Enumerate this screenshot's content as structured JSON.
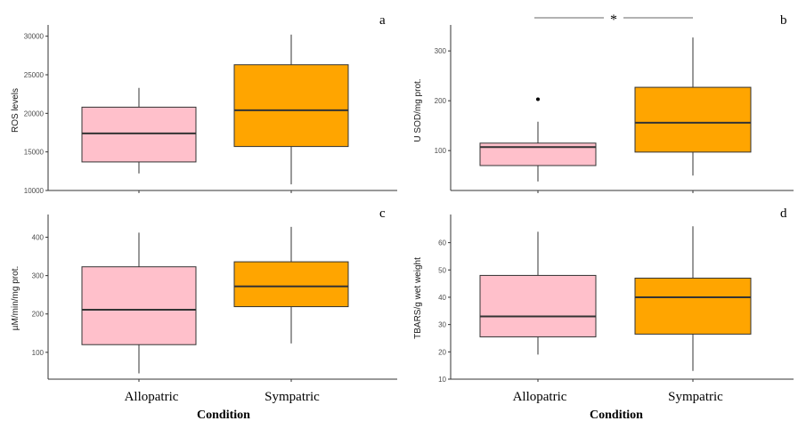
{
  "colors": {
    "allopatric": "#ffc0cb",
    "sympatric": "#ffa500",
    "box_stroke": "#333333",
    "axis": "#333333"
  },
  "xlabel": "Condition",
  "categories": [
    "Allopatric",
    "Sympatric"
  ],
  "chart_data": [
    {
      "type": "box",
      "panel": "a",
      "ylabel": "ROS levels",
      "yticks": [
        10000,
        15000,
        20000,
        25000,
        30000
      ],
      "ylim": [
        10000,
        31000
      ],
      "categories": [
        "Allopatric",
        "Sympatric"
      ],
      "boxes": [
        {
          "name": "Allopatric",
          "whisker_low": 12200,
          "q1": 13700,
          "median": 17400,
          "q3": 20800,
          "whisker_high": 23300,
          "outliers": []
        },
        {
          "name": "Sympatric",
          "whisker_low": 10800,
          "q1": 15700,
          "median": 20400,
          "q3": 26300,
          "whisker_high": 30200,
          "outliers": []
        }
      ]
    },
    {
      "type": "box",
      "panel": "b",
      "ylabel": "U SOD/mg prot.",
      "yticks": [
        100,
        200,
        300
      ],
      "ylim": [
        20,
        345
      ],
      "categories": [
        "Allopatric",
        "Sympatric"
      ],
      "boxes": [
        {
          "name": "Allopatric",
          "whisker_low": 38,
          "q1": 70,
          "median": 107,
          "q3": 115,
          "whisker_high": 158,
          "outliers": [
            203
          ]
        },
        {
          "name": "Sympatric",
          "whisker_low": 50,
          "q1": 97,
          "median": 156,
          "q3": 227,
          "whisker_high": 327,
          "outliers": []
        }
      ],
      "significance": "*"
    },
    {
      "type": "box",
      "panel": "c",
      "ylabel": "µM/min/mg prot.",
      "yticks": [
        100,
        200,
        300,
        400
      ],
      "ylim": [
        30,
        450
      ],
      "categories": [
        "Allopatric",
        "Sympatric"
      ],
      "boxes": [
        {
          "name": "Allopatric",
          "whisker_low": 45,
          "q1": 120,
          "median": 211,
          "q3": 323,
          "whisker_high": 412,
          "outliers": []
        },
        {
          "name": "Sympatric",
          "whisker_low": 123,
          "q1": 219,
          "median": 272,
          "q3": 336,
          "whisker_high": 427,
          "outliers": []
        }
      ]
    },
    {
      "type": "box",
      "panel": "d",
      "ylabel": "TBARS/g wet weight",
      "yticks": [
        10,
        20,
        30,
        40,
        50,
        60
      ],
      "ylim": [
        10,
        69
      ],
      "categories": [
        "Allopatric",
        "Sympatric"
      ],
      "boxes": [
        {
          "name": "Allopatric",
          "whisker_low": 19,
          "q1": 25.5,
          "median": 33,
          "q3": 48,
          "whisker_high": 64,
          "outliers": []
        },
        {
          "name": "Sympatric",
          "whisker_low": 13,
          "q1": 26.5,
          "median": 40,
          "q3": 47,
          "whisker_high": 66,
          "outliers": []
        }
      ]
    }
  ]
}
